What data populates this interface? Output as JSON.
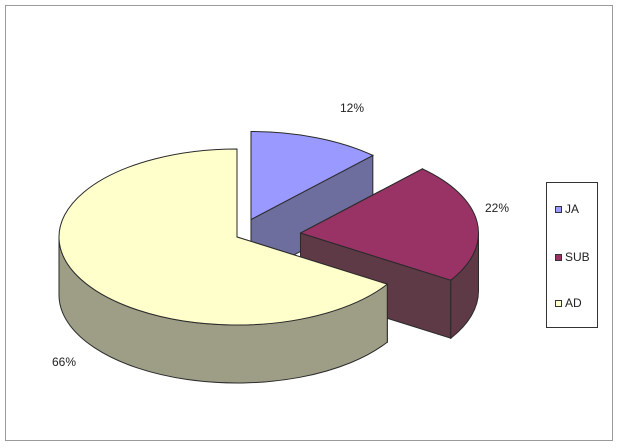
{
  "chart_data": {
    "type": "pie",
    "categories": [
      "JA",
      "SUB",
      "AD"
    ],
    "values": [
      12,
      22,
      66
    ],
    "data_labels": [
      "12%",
      "22%",
      "66%"
    ],
    "colors": [
      "#9999ff",
      "#993366",
      "#ffffcc"
    ],
    "side_colors": [
      "#6e6e9e",
      "#5e3a46",
      "#9e9e86"
    ],
    "exploded": true,
    "three_d": true,
    "legend_position": "right"
  },
  "legend": {
    "items": [
      {
        "label": "JA",
        "color": "#9999ff"
      },
      {
        "label": "SUB",
        "color": "#993366"
      },
      {
        "label": "AD",
        "color": "#ffffcc"
      }
    ]
  }
}
